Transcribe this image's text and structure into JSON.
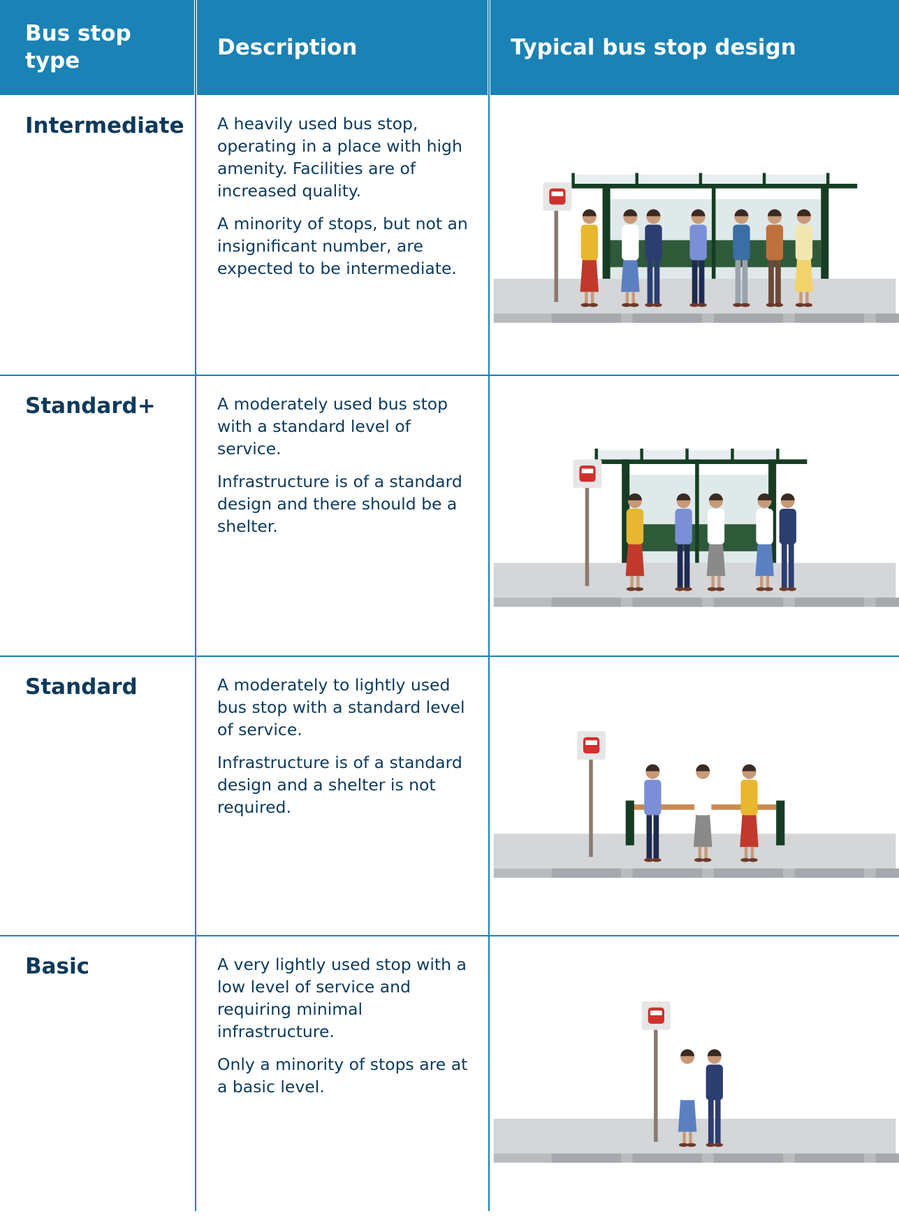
{
  "table": {
    "columns": [
      "Bus stop type",
      "Description",
      "Typical bus stop design"
    ],
    "rows": [
      {
        "type": "Intermediate",
        "description": [
          "A heavily used bus stop, operating in a place with high amenity. Facilities are of increased quality.",
          "A minority of stops, but not an insignificant number, are expected to be intermediate."
        ]
      },
      {
        "type": "Standard+",
        "description": [
          "A moderately used bus stop with a standard level of service.",
          "Infrastructure is of a standard design and there should be a shelter."
        ]
      },
      {
        "type": "Standard",
        "description": [
          "A moderately to lightly used bus stop with a standard level of service.",
          "Infrastructure is of a standard design and a shelter is not required."
        ]
      },
      {
        "type": "Basic",
        "description": [
          "A very lightly used stop with a low level of service and requiring minimal infrastructure.",
          "Only a minority of stops are at a basic level."
        ]
      }
    ]
  }
}
